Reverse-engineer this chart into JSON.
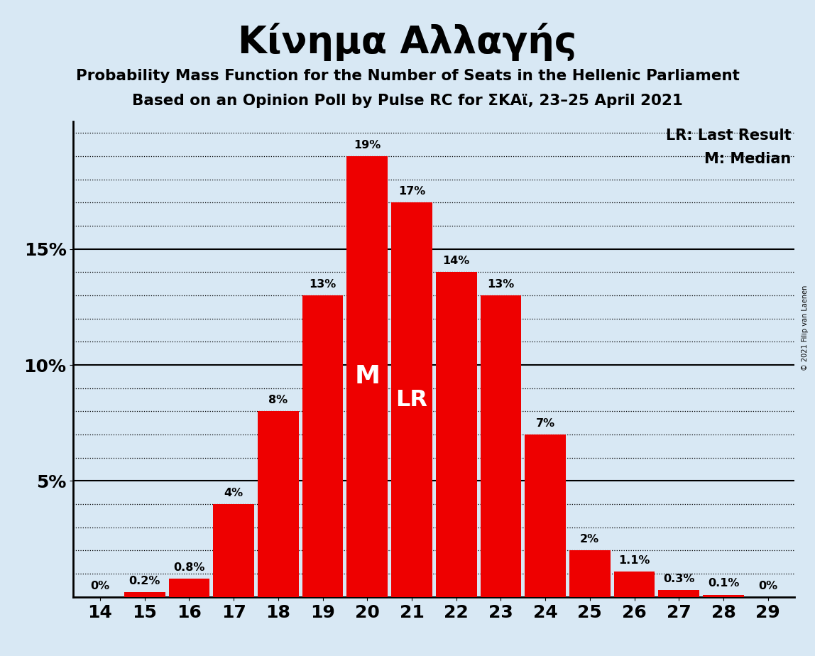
{
  "title": "Κίνημα Αλλαγής",
  "subtitle1": "Probability Mass Function for the Number of Seats in the Hellenic Parliament",
  "subtitle2": "Based on an Opinion Poll by Pulse RC for ΣΚΑϊ, 23–25 April 2021",
  "copyright": "© 2021 Filip van Laenen",
  "categories": [
    14,
    15,
    16,
    17,
    18,
    19,
    20,
    21,
    22,
    23,
    24,
    25,
    26,
    27,
    28,
    29
  ],
  "values": [
    0.0,
    0.2,
    0.8,
    4.0,
    8.0,
    13.0,
    19.0,
    17.0,
    14.0,
    13.0,
    7.0,
    2.0,
    1.1,
    0.3,
    0.1,
    0.0
  ],
  "labels": [
    "0%",
    "0.2%",
    "0.8%",
    "4%",
    "8%",
    "13%",
    "19%",
    "17%",
    "14%",
    "13%",
    "7%",
    "2%",
    "1.1%",
    "0.3%",
    "0.1%",
    "0%"
  ],
  "bar_color": "#ee0000",
  "background_color": "#d8e8f4",
  "median_seat": 20,
  "lr_seat": 21,
  "ylim": [
    0,
    20.5
  ],
  "solid_yticks": [
    5,
    10,
    15
  ],
  "solid_ytick_labels": [
    "5%",
    "10%",
    "15%"
  ],
  "dotted_yticks": [
    1,
    2,
    3,
    4,
    6,
    7,
    8,
    9,
    11,
    12,
    13,
    14,
    16,
    17,
    18,
    19,
    20
  ],
  "legend_lr": "LR: Last Result",
  "legend_m": "M: Median"
}
